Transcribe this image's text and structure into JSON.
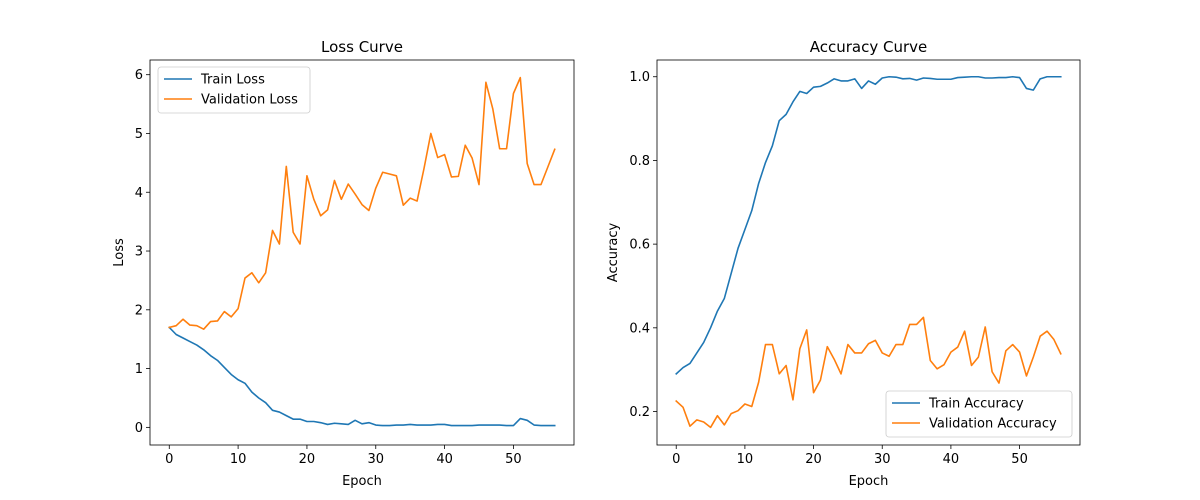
{
  "chart_data": [
    {
      "type": "line",
      "title": "Loss Curve",
      "xlabel": "Epoch",
      "ylabel": "Loss",
      "xlim": [
        -2.8,
        58.8
      ],
      "ylim": [
        -0.3,
        6.25
      ],
      "xticks": [
        0,
        10,
        20,
        30,
        40,
        50
      ],
      "yticks": [
        0,
        1,
        2,
        3,
        4,
        5,
        6
      ],
      "legend_loc": "upper left",
      "grid": false,
      "x": [
        0,
        1,
        2,
        3,
        4,
        5,
        6,
        7,
        8,
        9,
        10,
        11,
        12,
        13,
        14,
        15,
        16,
        17,
        18,
        19,
        20,
        21,
        22,
        23,
        24,
        25,
        26,
        27,
        28,
        29,
        30,
        31,
        32,
        33,
        34,
        35,
        36,
        37,
        38,
        39,
        40,
        41,
        42,
        43,
        44,
        45,
        46,
        47,
        48,
        49,
        50,
        51,
        52,
        53,
        54,
        55,
        56
      ],
      "series": [
        {
          "name": "Train Loss",
          "color": "#1f77b4",
          "values": [
            1.7,
            1.58,
            1.52,
            1.46,
            1.4,
            1.32,
            1.22,
            1.14,
            1.02,
            0.9,
            0.81,
            0.75,
            0.6,
            0.5,
            0.42,
            0.29,
            0.26,
            0.2,
            0.14,
            0.14,
            0.1,
            0.1,
            0.08,
            0.05,
            0.07,
            0.06,
            0.05,
            0.12,
            0.06,
            0.08,
            0.04,
            0.03,
            0.03,
            0.04,
            0.04,
            0.05,
            0.04,
            0.04,
            0.04,
            0.05,
            0.05,
            0.03,
            0.03,
            0.03,
            0.03,
            0.04,
            0.04,
            0.04,
            0.04,
            0.03,
            0.03,
            0.15,
            0.12,
            0.04,
            0.03,
            0.03,
            0.03
          ]
        },
        {
          "name": "Validation Loss",
          "color": "#ff7f0e",
          "values": [
            1.7,
            1.73,
            1.84,
            1.74,
            1.73,
            1.67,
            1.8,
            1.81,
            1.97,
            1.88,
            2.02,
            2.54,
            2.63,
            2.46,
            2.63,
            3.35,
            3.12,
            4.44,
            3.32,
            3.12,
            4.28,
            3.88,
            3.6,
            3.7,
            4.2,
            3.88,
            4.14,
            3.97,
            3.79,
            3.69,
            4.07,
            4.34,
            4.31,
            4.28,
            3.78,
            3.9,
            3.85,
            4.4,
            5.0,
            4.59,
            4.64,
            4.26,
            4.27,
            4.8,
            4.58,
            4.13,
            5.87,
            5.42,
            4.74,
            4.74,
            5.68,
            5.95,
            4.49,
            4.13,
            4.13,
            4.43,
            4.73
          ]
        }
      ]
    },
    {
      "type": "line",
      "title": "Accuracy Curve",
      "xlabel": "Epoch",
      "ylabel": "Accuracy",
      "xlim": [
        -2.8,
        58.8
      ],
      "ylim": [
        0.12,
        1.04
      ],
      "xticks": [
        0,
        10,
        20,
        30,
        40,
        50
      ],
      "yticks": [
        0.2,
        0.4,
        0.6,
        0.8,
        1.0
      ],
      "ytick_labels": [
        "0.2",
        "0.4",
        "0.6",
        "0.8",
        "1.0"
      ],
      "legend_loc": "lower right",
      "grid": false,
      "x": [
        0,
        1,
        2,
        3,
        4,
        5,
        6,
        7,
        8,
        9,
        10,
        11,
        12,
        13,
        14,
        15,
        16,
        17,
        18,
        19,
        20,
        21,
        22,
        23,
        24,
        25,
        26,
        27,
        28,
        29,
        30,
        31,
        32,
        33,
        34,
        35,
        36,
        37,
        38,
        39,
        40,
        41,
        42,
        43,
        44,
        45,
        46,
        47,
        48,
        49,
        50,
        51,
        52,
        53,
        54,
        55,
        56
      ],
      "series": [
        {
          "name": "Train Accuracy",
          "color": "#1f77b4",
          "values": [
            0.29,
            0.305,
            0.315,
            0.34,
            0.365,
            0.4,
            0.44,
            0.47,
            0.53,
            0.59,
            0.635,
            0.68,
            0.745,
            0.795,
            0.835,
            0.895,
            0.91,
            0.94,
            0.965,
            0.96,
            0.975,
            0.977,
            0.985,
            0.995,
            0.99,
            0.99,
            0.995,
            0.972,
            0.99,
            0.982,
            0.997,
            1.0,
            0.999,
            0.995,
            0.996,
            0.992,
            0.997,
            0.996,
            0.994,
            0.994,
            0.994,
            0.998,
            0.999,
            1.0,
            1.0,
            0.997,
            0.997,
            0.998,
            0.998,
            1.0,
            0.998,
            0.972,
            0.968,
            0.995,
            1.0,
            1.0,
            1.0
          ]
        },
        {
          "name": "Validation Accuracy",
          "color": "#ff7f0e",
          "values": [
            0.225,
            0.21,
            0.165,
            0.18,
            0.175,
            0.162,
            0.19,
            0.168,
            0.195,
            0.202,
            0.218,
            0.212,
            0.27,
            0.36,
            0.36,
            0.29,
            0.31,
            0.228,
            0.35,
            0.395,
            0.245,
            0.275,
            0.355,
            0.325,
            0.29,
            0.36,
            0.34,
            0.34,
            0.362,
            0.37,
            0.34,
            0.332,
            0.36,
            0.36,
            0.408,
            0.408,
            0.425,
            0.322,
            0.302,
            0.312,
            0.342,
            0.354,
            0.392,
            0.31,
            0.33,
            0.402,
            0.295,
            0.268,
            0.345,
            0.36,
            0.342,
            0.285,
            0.33,
            0.38,
            0.392,
            0.372,
            0.338
          ]
        }
      ]
    }
  ]
}
